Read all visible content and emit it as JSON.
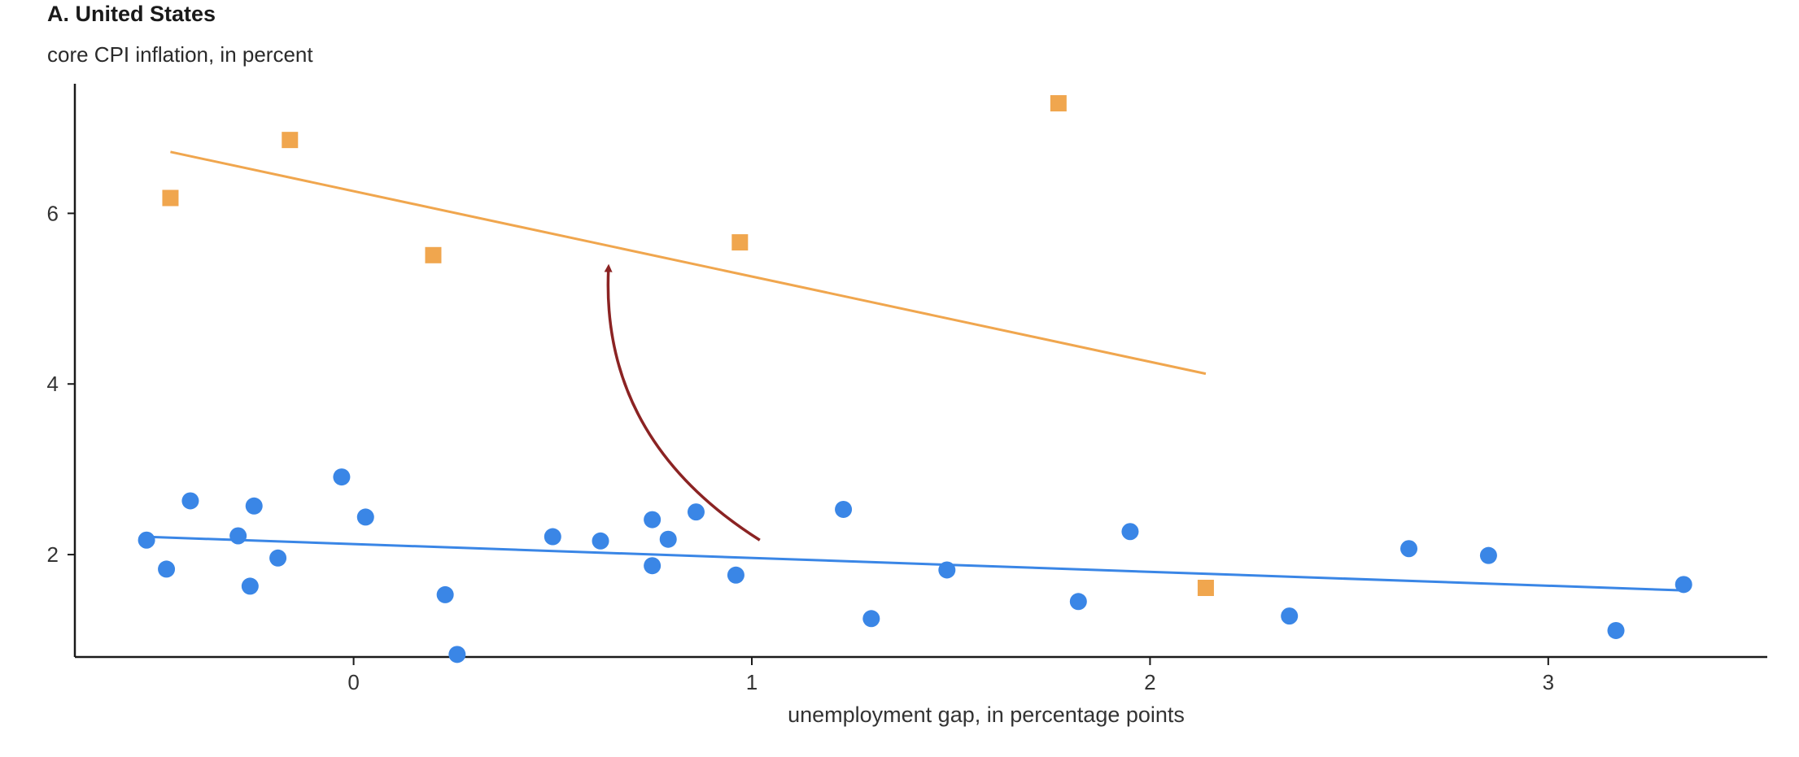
{
  "title": "A. United States",
  "subtitle": "core CPI inflation, in percent",
  "colors": {
    "pre_series": "#3a86e6",
    "post_series": "#f0a64e",
    "arrow": "#8b2323",
    "axis": "#1a1a1a",
    "text": "#333333"
  },
  "chart_data": {
    "type": "scatter",
    "xlabel": "unemployment gap, in percentage points",
    "ylabel": "core CPI inflation, in percent",
    "xlim": [
      -0.7,
      3.55
    ],
    "ylim": [
      0.8,
      7.5
    ],
    "xticks": [
      0,
      1,
      2,
      3
    ],
    "yticks": [
      2,
      4,
      6
    ],
    "grid": false,
    "series": [
      {
        "marker": "circle",
        "color": "#3a86e6",
        "points": [
          [
            -0.52,
            2.17
          ],
          [
            -0.47,
            1.83
          ],
          [
            -0.41,
            2.63
          ],
          [
            -0.29,
            2.22
          ],
          [
            -0.25,
            2.57
          ],
          [
            -0.26,
            1.63
          ],
          [
            -0.19,
            1.96
          ],
          [
            -0.03,
            2.91
          ],
          [
            0.03,
            2.44
          ],
          [
            0.23,
            1.53
          ],
          [
            0.26,
            0.83
          ],
          [
            0.5,
            2.21
          ],
          [
            0.62,
            2.16
          ],
          [
            0.75,
            2.41
          ],
          [
            0.75,
            1.87
          ],
          [
            0.79,
            2.18
          ],
          [
            0.86,
            2.5
          ],
          [
            0.96,
            1.76
          ],
          [
            1.23,
            2.53
          ],
          [
            1.3,
            1.25
          ],
          [
            1.49,
            1.82
          ],
          [
            1.82,
            1.45
          ],
          [
            1.95,
            2.27
          ],
          [
            2.35,
            1.28
          ],
          [
            2.65,
            2.07
          ],
          [
            2.85,
            1.99
          ],
          [
            3.17,
            1.11
          ],
          [
            3.34,
            1.65
          ]
        ],
        "trendline": {
          "x": [
            -0.53,
            3.34
          ],
          "y": [
            2.21,
            1.58
          ]
        }
      },
      {
        "marker": "square",
        "color": "#f0a64e",
        "points": [
          [
            -0.46,
            6.18
          ],
          [
            -0.16,
            6.86
          ],
          [
            0.2,
            5.51
          ],
          [
            0.97,
            5.66
          ],
          [
            1.77,
            7.29
          ],
          [
            2.14,
            1.61
          ]
        ],
        "trendline": {
          "x": [
            -0.46,
            2.14
          ],
          "y": [
            6.72,
            4.12
          ]
        }
      }
    ],
    "annotations": [
      {
        "type": "curved-arrow",
        "from": [
          1.02,
          2.17
        ],
        "control": [
          0.62,
          3.35
        ],
        "to": [
          0.64,
          5.35
        ],
        "color": "#8b2323"
      }
    ]
  }
}
